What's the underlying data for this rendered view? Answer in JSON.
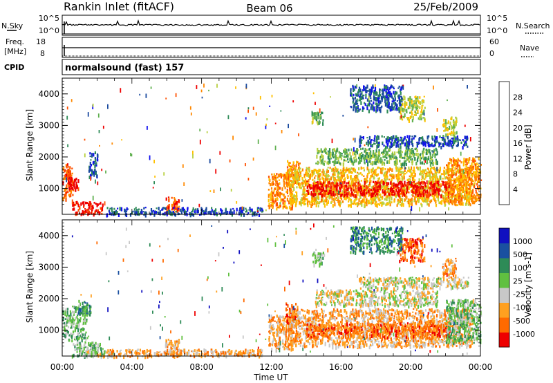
{
  "header": {
    "station": "Rankin Inlet (fitACF)",
    "beam": "Beam 06",
    "date": "25/Feb/2009"
  },
  "top_panels": {
    "nsky_label": "N.Sky",
    "nsky_ticks": [
      "10^5",
      "10^0"
    ],
    "nsearch_label": "N.Search",
    "nsearch_ticks": [
      "10^5",
      "10^0"
    ],
    "freq_label": "Freq.",
    "freq_unit": "[MHz]",
    "freq_ticks": [
      "18",
      "8"
    ],
    "nave_label": "Nave",
    "nave_ticks": [
      "60",
      "0"
    ],
    "cpid_label": "CPID",
    "cpid_value": "normalsound (fast) 157"
  },
  "x_axis": {
    "label": "Time UT",
    "ticks": [
      "00:00",
      "04:00",
      "08:00",
      "12:00",
      "16:00",
      "20:00",
      "00:00"
    ]
  },
  "colors": {
    "power": [
      "#1010ee",
      "#1a4a9e",
      "#2e8b57",
      "#60b050",
      "#b8d040",
      "#ffc000",
      "#ff8800",
      "#ff5000",
      "#ee0000"
    ],
    "velocity": [
      "#ee0000",
      "#ff6a00",
      "#ffa020",
      "#c8c8c8",
      "#60c040",
      "#2e8b57",
      "#1a50a0",
      "#1010c0"
    ]
  },
  "chart_data": [
    {
      "type": "heatmap",
      "panel": "power",
      "ylabel": "Slant Range [km]",
      "yticks": [
        "1000",
        "2000",
        "3000",
        "4000"
      ],
      "ylim": [
        180,
        4500
      ],
      "xlim": [
        0,
        24
      ],
      "colorbar_label": "Power [dB]",
      "colorbar_ticks": [
        "4",
        "8",
        "12",
        "16",
        "20",
        "24",
        "28"
      ],
      "regions": [
        {
          "t0": 0.0,
          "t1": 0.6,
          "r0": 700,
          "r1": 1800,
          "level": 7
        },
        {
          "t0": 0.3,
          "t1": 0.9,
          "r0": 1000,
          "r1": 1400,
          "level": 8
        },
        {
          "t0": 0.5,
          "t1": 2.3,
          "r0": 200,
          "r1": 600,
          "level": 8
        },
        {
          "t0": 1.5,
          "t1": 2.0,
          "r0": 1400,
          "r1": 2200,
          "level": 1
        },
        {
          "t0": 5.9,
          "t1": 6.7,
          "r0": 250,
          "r1": 750,
          "level": 7
        },
        {
          "t0": 2.5,
          "t1": 11.5,
          "r0": 200,
          "r1": 420,
          "level": 1
        },
        {
          "t0": 11.8,
          "t1": 13.2,
          "r0": 400,
          "r1": 1500,
          "level": 6
        },
        {
          "t0": 12.8,
          "t1": 13.6,
          "r0": 1100,
          "r1": 1900,
          "level": 6
        },
        {
          "t0": 13.0,
          "t1": 23.5,
          "r0": 500,
          "r1": 1700,
          "level": 5
        },
        {
          "t0": 14.0,
          "t1": 22.2,
          "r0": 800,
          "r1": 1250,
          "level": 8
        },
        {
          "t0": 22.0,
          "t1": 24.0,
          "r0": 600,
          "r1": 2000,
          "level": 6
        },
        {
          "t0": 14.5,
          "t1": 21.5,
          "r0": 1800,
          "r1": 2300,
          "level": 3
        },
        {
          "t0": 17.0,
          "t1": 23.3,
          "r0": 2350,
          "r1": 2700,
          "level": 1
        },
        {
          "t0": 19.3,
          "t1": 20.8,
          "r0": 3200,
          "r1": 3950,
          "level": 4
        },
        {
          "t0": 14.3,
          "t1": 15.0,
          "r0": 3100,
          "r1": 3500,
          "level": 3
        },
        {
          "t0": 21.8,
          "t1": 22.6,
          "r0": 2700,
          "r1": 3300,
          "level": 4
        },
        {
          "t0": 16.5,
          "t1": 19.5,
          "r0": 3500,
          "r1": 4300,
          "level": 1
        }
      ]
    },
    {
      "type": "heatmap",
      "panel": "velocity",
      "ylabel": "Slant Range [km]",
      "yticks": [
        "1000",
        "2000",
        "3000",
        "4000"
      ],
      "ylim": [
        180,
        4500
      ],
      "xlim": [
        0,
        24
      ],
      "colorbar_label": "Velocity [m s-1]",
      "colorbar_ticks": [
        "1000",
        "500",
        "100",
        "25",
        "-25",
        "-100",
        "-500",
        "-1000"
      ],
      "regions": [
        {
          "t0": 0.0,
          "t1": 1.4,
          "r0": 700,
          "r1": 1800,
          "level": 4
        },
        {
          "t0": 0.9,
          "t1": 1.6,
          "r0": 1500,
          "r1": 2000,
          "level": 5
        },
        {
          "t0": 0.5,
          "t1": 2.3,
          "r0": 200,
          "r1": 650,
          "level": 4
        },
        {
          "t0": 1.2,
          "t1": 3.0,
          "r0": 200,
          "r1": 400,
          "level": 3
        },
        {
          "t0": 5.9,
          "t1": 6.7,
          "r0": 250,
          "r1": 750,
          "level": 2
        },
        {
          "t0": 2.5,
          "t1": 11.5,
          "r0": 200,
          "r1": 420,
          "level": 2
        },
        {
          "t0": 11.8,
          "t1": 13.2,
          "r0": 400,
          "r1": 1500,
          "level": 2
        },
        {
          "t0": 12.8,
          "t1": 13.6,
          "r0": 1100,
          "r1": 1900,
          "level": 1
        },
        {
          "t0": 13.0,
          "t1": 23.5,
          "r0": 500,
          "r1": 1700,
          "level": 2
        },
        {
          "t0": 14.0,
          "t1": 22.2,
          "r0": 800,
          "r1": 1250,
          "level": 1
        },
        {
          "t0": 22.0,
          "t1": 24.0,
          "r0": 600,
          "r1": 2000,
          "level": 4
        },
        {
          "t0": 14.5,
          "t1": 21.5,
          "r0": 1800,
          "r1": 2300,
          "level": 3
        },
        {
          "t0": 17.0,
          "t1": 23.3,
          "r0": 2350,
          "r1": 2700,
          "level": 3
        },
        {
          "t0": 19.3,
          "t1": 20.8,
          "r0": 3200,
          "r1": 3950,
          "level": 1
        },
        {
          "t0": 14.3,
          "t1": 15.0,
          "r0": 3100,
          "r1": 3500,
          "level": 4
        },
        {
          "t0": 21.8,
          "t1": 22.6,
          "r0": 2700,
          "r1": 3300,
          "level": 2
        },
        {
          "t0": 16.5,
          "t1": 19.5,
          "r0": 3500,
          "r1": 4300,
          "level": 5
        }
      ]
    }
  ]
}
